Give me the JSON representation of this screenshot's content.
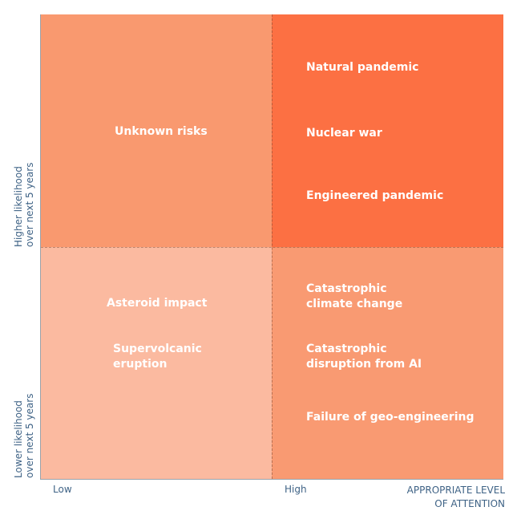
{
  "colors": {
    "top_left": "#f9996f",
    "top_right": "#fc7043",
    "bottom_left": "#fbbaa0",
    "bottom_right": "#f99a72",
    "axis_text": "#3f6386"
  },
  "quadrants": {
    "top_left": [
      "Unknown risks"
    ],
    "top_right": [
      "Natural pandemic",
      "Nuclear war",
      "Engineered pandemic"
    ],
    "bottom_left": [
      "Asteroid impact",
      "Supervolcanic eruption"
    ],
    "bottom_right": [
      "Catastrophic climate change",
      "Catastrophic disruption from AI",
      "Failure of geo-engineering"
    ]
  },
  "x_axis": {
    "low": "Low",
    "high": "High",
    "title_line1": "APPROPRIATE LEVEL",
    "title_line2": "OF ATTENTION"
  },
  "y_axis": {
    "high_line1": "Higher likelihood",
    "high_line2": "over next 5 years",
    "low_line1": "Lower likelihood",
    "low_line2": "over next 5 years"
  }
}
